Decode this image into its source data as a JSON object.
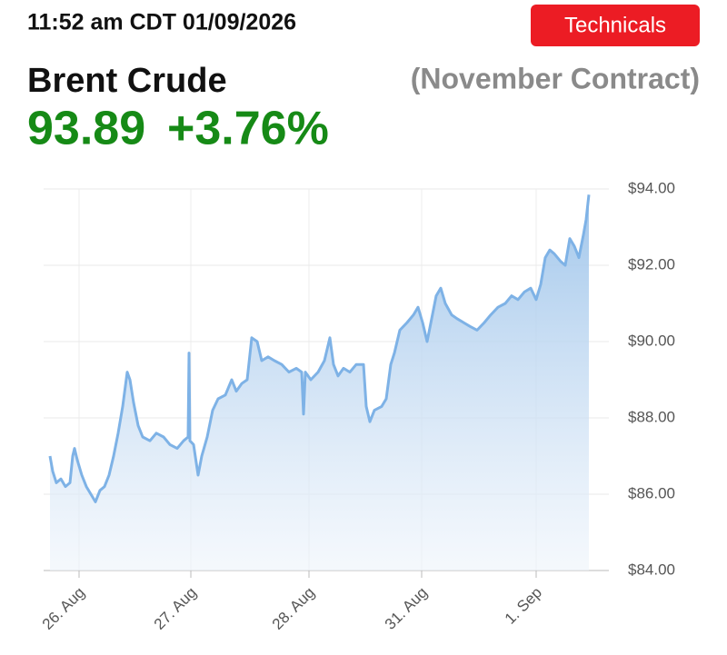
{
  "header": {
    "timestamp": "11:52 am CDT 01/09/2026",
    "button": "Technicals",
    "name": "Brent Crude",
    "contract": "(November Contract)",
    "price": "93.89",
    "change": "+3.76%"
  },
  "chart_data": {
    "type": "line",
    "color": "#7eb2e6",
    "area": true,
    "grid": true,
    "xlim": [
      0,
      622
    ],
    "xticks": [
      {
        "value": 39,
        "label": "26. Aug"
      },
      {
        "value": 162,
        "label": "27. Aug"
      },
      {
        "value": 292,
        "label": "28. Aug"
      },
      {
        "value": 416,
        "label": "31. Aug"
      },
      {
        "value": 542,
        "label": "1. Sep"
      }
    ],
    "ylim": [
      84,
      94
    ],
    "yticks": [
      {
        "value": 84,
        "label": "$84.00"
      },
      {
        "value": 86,
        "label": "$86.00"
      },
      {
        "value": 88,
        "label": "$88.00"
      },
      {
        "value": 90,
        "label": "$90.00"
      },
      {
        "value": 92,
        "label": "$92.00"
      },
      {
        "value": 94,
        "label": "$94.00"
      }
    ],
    "x": [
      7,
      10,
      14,
      19,
      24,
      29,
      32,
      34,
      37,
      42,
      47,
      52,
      57,
      62,
      67,
      72,
      77,
      82,
      87,
      92,
      95,
      99,
      104,
      109,
      117,
      124,
      132,
      139,
      147,
      154,
      159,
      160,
      161,
      165,
      170,
      174,
      180,
      186,
      192,
      200,
      207,
      212,
      218,
      224,
      229,
      235,
      240,
      247,
      254,
      262,
      270,
      278,
      284,
      286,
      288,
      294,
      302,
      309,
      315,
      319,
      324,
      330,
      337,
      344,
      352,
      355,
      359,
      364,
      372,
      377,
      382,
      386,
      392,
      400,
      407,
      412,
      417,
      422,
      427,
      432,
      437,
      442,
      449,
      455,
      462,
      469,
      477,
      485,
      492,
      500,
      508,
      515,
      522,
      529,
      536,
      542,
      547,
      552,
      557,
      562,
      569,
      574,
      579,
      584,
      589,
      594,
      597,
      600
    ],
    "values": [
      87.0,
      86.6,
      86.3,
      86.4,
      86.2,
      86.3,
      87.0,
      87.2,
      86.9,
      86.5,
      86.2,
      86.0,
      85.8,
      86.1,
      86.2,
      86.5,
      87.0,
      87.6,
      88.3,
      89.2,
      89.0,
      88.4,
      87.8,
      87.5,
      87.4,
      87.6,
      87.5,
      87.3,
      87.2,
      87.4,
      87.5,
      89.7,
      87.4,
      87.3,
      86.5,
      87.0,
      87.5,
      88.2,
      88.5,
      88.6,
      89.0,
      88.7,
      88.9,
      89.0,
      90.1,
      90.0,
      89.5,
      89.6,
      89.5,
      89.4,
      89.2,
      89.3,
      89.2,
      88.1,
      89.2,
      89.0,
      89.2,
      89.5,
      90.1,
      89.4,
      89.1,
      89.3,
      89.2,
      89.4,
      89.4,
      88.3,
      87.9,
      88.2,
      88.3,
      88.5,
      89.4,
      89.7,
      90.3,
      90.5,
      90.7,
      90.9,
      90.5,
      90.0,
      90.6,
      91.2,
      91.4,
      91.0,
      90.7,
      90.6,
      90.5,
      90.4,
      90.3,
      90.5,
      90.7,
      90.9,
      91.0,
      91.2,
      91.1,
      91.3,
      91.4,
      91.1,
      91.5,
      92.2,
      92.4,
      92.3,
      92.1,
      92.0,
      92.7,
      92.5,
      92.2,
      92.8,
      93.2,
      93.85
    ]
  }
}
